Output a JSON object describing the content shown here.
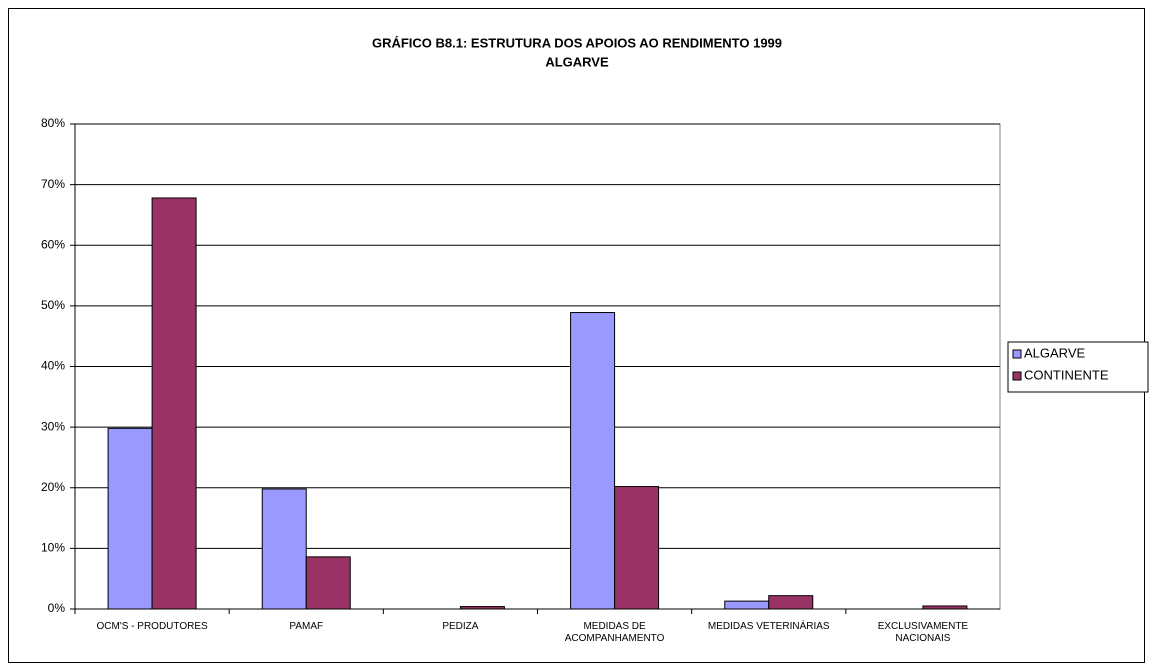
{
  "chart_data": {
    "type": "bar",
    "title": "GRÁFICO B8.1: ESTRUTURA DOS APOIOS AO RENDIMENTO 1999",
    "subtitle": "ALGARVE",
    "categories": [
      "OCM'S - PRODUTORES",
      "PAMAF",
      "PEDIZA",
      "MEDIDAS DE ACOMPANHAMENTO",
      "MEDIDAS VETERINÁRIAS",
      "EXCLUSIVAMENTE NACIONAIS"
    ],
    "series": [
      {
        "name": "ALGARVE",
        "color": "#9999ff",
        "values": [
          29.8,
          19.8,
          0,
          48.9,
          1.3,
          0
        ]
      },
      {
        "name": "CONTINENTE",
        "color": "#993366",
        "values": [
          67.8,
          8.6,
          0.4,
          20.2,
          2.2,
          0.5
        ]
      }
    ],
    "ylim": [
      0,
      80
    ],
    "yticks": [
      {
        "value": 0,
        "label": "0%"
      },
      {
        "value": 10,
        "label": "10%"
      },
      {
        "value": 20,
        "label": "20%"
      },
      {
        "value": 30,
        "label": "30%"
      },
      {
        "value": 40,
        "label": "40%"
      },
      {
        "value": 50,
        "label": "50%"
      },
      {
        "value": 60,
        "label": "60%"
      },
      {
        "value": 70,
        "label": "70%"
      },
      {
        "value": 80,
        "label": "80%"
      }
    ],
    "grid": true,
    "legend": "right"
  }
}
